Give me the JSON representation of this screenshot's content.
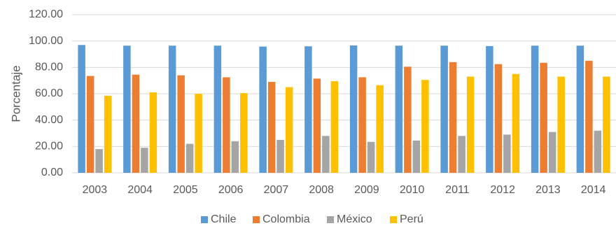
{
  "chart_data": {
    "type": "bar",
    "title": "",
    "xlabel": "",
    "ylabel": "Porcentaje",
    "ylim": [
      0,
      120
    ],
    "yticks": [
      "0.00",
      "20.00",
      "40.00",
      "60.00",
      "80.00",
      "100.00",
      "120.00"
    ],
    "grid": true,
    "legend_position": "bottom",
    "categories": [
      "2003",
      "2004",
      "2005",
      "2006",
      "2007",
      "2008",
      "2009",
      "2010",
      "2011",
      "2012",
      "2013",
      "2014"
    ],
    "series": [
      {
        "name": "Chile",
        "color": "#5B9BD5",
        "values": [
          97.0,
          96.5,
          96.5,
          96.5,
          95.8,
          96.0,
          96.7,
          96.5,
          96.5,
          96.2,
          96.5,
          96.5
        ]
      },
      {
        "name": "Colombia",
        "color": "#ED7D31",
        "values": [
          73.5,
          74.5,
          74.0,
          72.5,
          69.0,
          71.5,
          72.5,
          80.5,
          84.0,
          82.5,
          83.5,
          85.0
        ]
      },
      {
        "name": "México",
        "color": "#A5A5A5",
        "values": [
          18.0,
          19.0,
          22.0,
          24.0,
          25.0,
          28.0,
          23.5,
          24.5,
          28.0,
          29.0,
          31.0,
          32.0
        ]
      },
      {
        "name": "Perú",
        "color": "#FFC000",
        "values": [
          58.5,
          61.0,
          60.0,
          60.5,
          65.0,
          69.5,
          66.5,
          70.5,
          73.0,
          75.0,
          73.0,
          73.0
        ]
      }
    ]
  }
}
